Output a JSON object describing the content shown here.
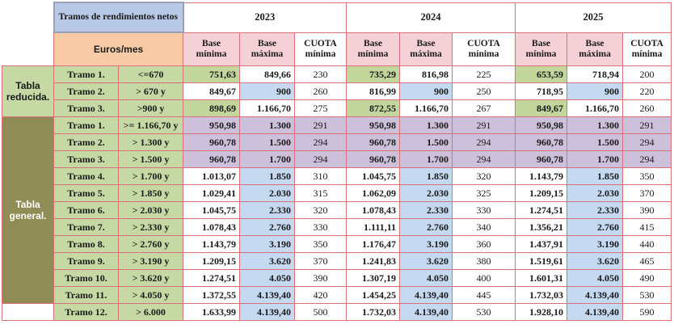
{
  "header": {
    "title": "Tramos de rendimientos netos",
    "euros_label": "Euros/mes",
    "years": [
      "2023",
      "2024",
      "2025"
    ],
    "col_base_min": "Base mínima",
    "col_base_max": "Base máxima",
    "col_base_max_split": "Base máxima",
    "col_cuota": "CUOTA mínima"
  },
  "groups": {
    "reducida": "Tabla reducida.",
    "general": "Tabla general."
  },
  "reducida_rows": [
    {
      "tramo": "Tramo 1.",
      "range": "<=670",
      "v": [
        "751,63",
        "849,66",
        "230",
        "735,29",
        "816,98",
        "225",
        "653,59",
        "718,94",
        "200"
      ]
    },
    {
      "tramo": "Tramo 2.",
      "range": "> 670 y",
      "v": [
        "849,67",
        "900",
        "260",
        "816,99",
        "900",
        "250",
        "718,95",
        "900",
        "220"
      ]
    },
    {
      "tramo": "Tramo 3.",
      "range": ">900 y",
      "v": [
        "898,69",
        "1.166,70",
        "275",
        "872,55",
        "1.166,70",
        "267",
        "849,67",
        "1.166,70",
        "260"
      ]
    }
  ],
  "general_rows": [
    {
      "tramo": "Tramo 1.",
      "range": ">= 1.166,70 y",
      "v": [
        "950,98",
        "1.300",
        "291",
        "950,98",
        "1.300",
        "291",
        "950,98",
        "1.300",
        "291"
      ]
    },
    {
      "tramo": "Tramo 2.",
      "range": "> 1.300 y",
      "v": [
        "960,78",
        "1.500",
        "294",
        "960,78",
        "1.500",
        "294",
        "960,78",
        "1.500",
        "294"
      ]
    },
    {
      "tramo": "Tramo 3.",
      "range": "> 1.500 y",
      "v": [
        "960,78",
        "1.700",
        "294",
        "960,78",
        "1.700",
        "294",
        "960,78",
        "1.700",
        "294"
      ]
    },
    {
      "tramo": "Tramo 4.",
      "range": "> 1.700 y",
      "v": [
        "1.013,07",
        "1.850",
        "310",
        "1.045,75",
        "1.850",
        "320",
        "1.143,79",
        "1.850",
        "350"
      ]
    },
    {
      "tramo": "Tramo 5.",
      "range": "> 1.850 y",
      "v": [
        "1.029,41",
        "2.030",
        "315",
        "1.062,09",
        "2.030",
        "325",
        "1.209,15",
        "2.030",
        "370"
      ]
    },
    {
      "tramo": "Tramo 6.",
      "range": "> 2.030 y",
      "v": [
        "1.045,75",
        "2.330",
        "320",
        "1.078,43",
        "2.330",
        "330",
        "1.274,51",
        "2.330",
        "390"
      ]
    },
    {
      "tramo": "Tramo 7.",
      "range": "> 2.330 y",
      "v": [
        "1.078,43",
        "2.760",
        "330",
        "1.111,11",
        "2.760",
        "340",
        "1.356,21",
        "2.760",
        "415"
      ]
    },
    {
      "tramo": "Tramo 8.",
      "range": "> 2.760 y",
      "v": [
        "1.143,79",
        "3.190",
        "350",
        "1.176,47",
        "3.190",
        "360",
        "1.437,91",
        "3.190",
        "440"
      ]
    },
    {
      "tramo": "Tramo 9.",
      "range": "> 3.190 y",
      "v": [
        "1.209,15",
        "3.620",
        "370",
        "1.241,83",
        "3.620",
        "380",
        "1.519,61",
        "3.620",
        "465"
      ]
    },
    {
      "tramo": "Tramo 10.",
      "range": "> 3.620 y",
      "v": [
        "1.274,51",
        "4.050",
        "390",
        "1.307,19",
        "4.050",
        "400",
        "1.601,31",
        "4.050",
        "490"
      ]
    },
    {
      "tramo": "Tramo 11.",
      "range": "> 4.050 y",
      "v": [
        "1.372,55",
        "4.139,40",
        "420",
        "1.454,25",
        "4.139,40",
        "445",
        "1.732,03",
        "4.139,40",
        "530"
      ]
    }
  ],
  "last_row": {
    "tramo": "Tramo 12.",
    "range": "> 6.000",
    "v": [
      "1.633,99",
      "4.139,40",
      "500",
      "1.732,03",
      "4.139,40",
      "530",
      "1.928,10",
      "4.139,40",
      "590"
    ]
  },
  "colors": {
    "reducida": "#c3d69b",
    "general": "#8f8c55",
    "purple": "#ccc0da",
    "blue": "#c5d9f1",
    "pink": "#f5d0d6",
    "orange": "#f8cba6",
    "title": "#b7c9e6",
    "grid": "#d9717b"
  }
}
